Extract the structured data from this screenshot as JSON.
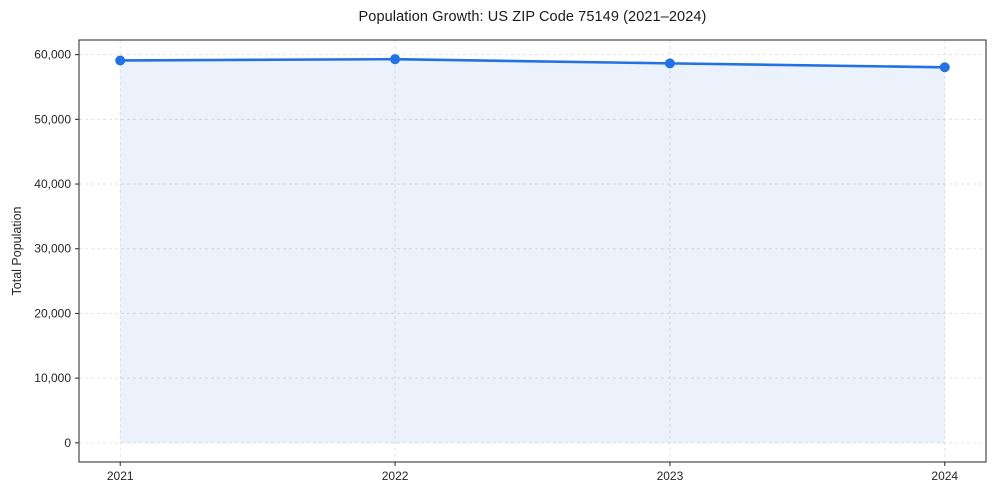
{
  "chart_data": {
    "type": "area",
    "title": "Population Growth: US ZIP Code 75149 (2021–2024)",
    "xlabel": "",
    "ylabel": "Total Population",
    "x": [
      2021,
      2022,
      2023,
      2024
    ],
    "categories": [
      "2021",
      "2022",
      "2023",
      "2024"
    ],
    "series": [
      {
        "name": "Total Population",
        "values": [
          59100,
          59300,
          58650,
          58050
        ]
      }
    ],
    "values": [
      59100,
      59300,
      58650,
      58050
    ],
    "baseline": 0,
    "xlim": [
      2020.85,
      2024.15
    ],
    "ylim": [
      -2965,
      62265
    ],
    "yticks": [
      0,
      10000,
      20000,
      30000,
      40000,
      50000,
      60000
    ],
    "ytick_labels": [
      "0",
      "10,000",
      "20,000",
      "30,000",
      "40,000",
      "50,000",
      "60,000"
    ],
    "xtick_labels": [
      "2021",
      "2022",
      "2023",
      "2024"
    ],
    "grid": true,
    "grid_style": "dashed",
    "legend": false,
    "colors": {
      "line": "#2272e3",
      "marker": "#2272e3",
      "fill": "#e9f1fc",
      "grid": "#e3e3e3",
      "spine": "#262626",
      "text": "#262626",
      "background": "#ffffff"
    },
    "marker_shape": "circle"
  }
}
